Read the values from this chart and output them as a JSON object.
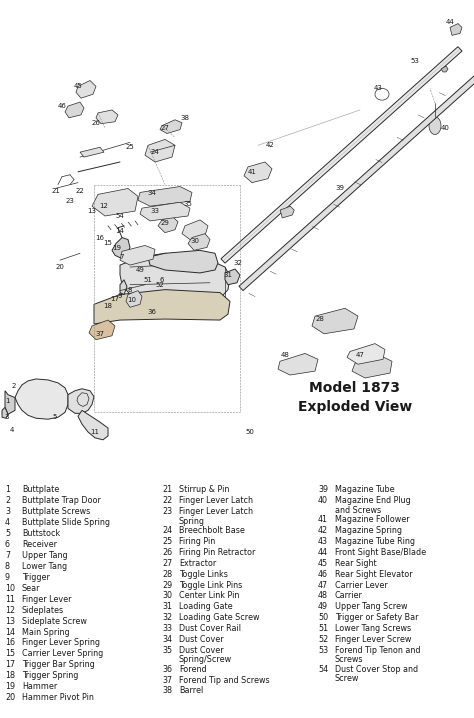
{
  "title_line1": "Model 1873",
  "title_line2": "Exploded View",
  "background_color": "#ffffff",
  "list_bg": "#ffffff",
  "text_color": "#1a1a1a",
  "line_color": "#2a2a2a",
  "parts_col1": [
    [
      "1",
      "Buttplate"
    ],
    [
      "2",
      "Buttplate Trap Door"
    ],
    [
      "3",
      "Buttplate Screws"
    ],
    [
      "4",
      "Buttplate Slide Spring"
    ],
    [
      "5",
      "Buttstock"
    ],
    [
      "6",
      "Receiver"
    ],
    [
      "7",
      "Upper Tang"
    ],
    [
      "8",
      "Lower Tang"
    ],
    [
      "9",
      "Trigger"
    ],
    [
      "10",
      "Sear"
    ],
    [
      "11",
      "Finger Lever"
    ],
    [
      "12",
      "Sideplates"
    ],
    [
      "13",
      "Sideplate Screw"
    ],
    [
      "14",
      "Main Spring"
    ],
    [
      "16",
      "Finger Lever Spring"
    ],
    [
      "15",
      "Carrier Lever Spring"
    ],
    [
      "17",
      "Trigger Bar Spring"
    ],
    [
      "18",
      "Trigger Spring"
    ],
    [
      "19",
      "Hammer"
    ],
    [
      "20",
      "Hammer Pivot Pin"
    ]
  ],
  "parts_col2": [
    [
      "21",
      "Stirrup & Pin"
    ],
    [
      "22",
      "Finger Lever Latch"
    ],
    [
      "23",
      "Finger Lever Latch\nSpring"
    ],
    [
      "24",
      "Breechbolt Base"
    ],
    [
      "25",
      "Firing Pin"
    ],
    [
      "26",
      "Firing Pin Retractor"
    ],
    [
      "27",
      "Extractor"
    ],
    [
      "28",
      "Toggle Links"
    ],
    [
      "29",
      "Toggle Link Pins"
    ],
    [
      "30",
      "Center Link Pin"
    ],
    [
      "31",
      "Loading Gate"
    ],
    [
      "32",
      "Loading Gate Screw"
    ],
    [
      "33",
      "Dust Cover Rail"
    ],
    [
      "34",
      "Dust Cover"
    ],
    [
      "35",
      "Dust Cover\nSpring/Screw"
    ],
    [
      "36",
      "Forend"
    ],
    [
      "37",
      "Forend Tip and Screws"
    ],
    [
      "38",
      "Barrel"
    ]
  ],
  "parts_col3": [
    [
      "39",
      "Magazine Tube"
    ],
    [
      "40",
      "Magazine End Plug\nand Screws"
    ],
    [
      "41",
      "Magazine Follower"
    ],
    [
      "42",
      "Magazine Spring"
    ],
    [
      "43",
      "Magazine Tube Ring"
    ],
    [
      "44",
      "Front Sight Base/Blade"
    ],
    [
      "45",
      "Rear Sight"
    ],
    [
      "46",
      "Rear Sight Elevator"
    ],
    [
      "47",
      "Carrier Lever"
    ],
    [
      "48",
      "Carrier"
    ],
    [
      "49",
      "Upper Tang Screw"
    ],
    [
      "50",
      "Trigger or Safety Bar"
    ],
    [
      "51",
      "Lower Tang Screws"
    ],
    [
      "52",
      "Finger Lever Screw"
    ],
    [
      "53",
      "Forend Tip Tenon and\nScrews"
    ],
    [
      "54",
      "Dust Cover Stop and\nScrew"
    ]
  ]
}
